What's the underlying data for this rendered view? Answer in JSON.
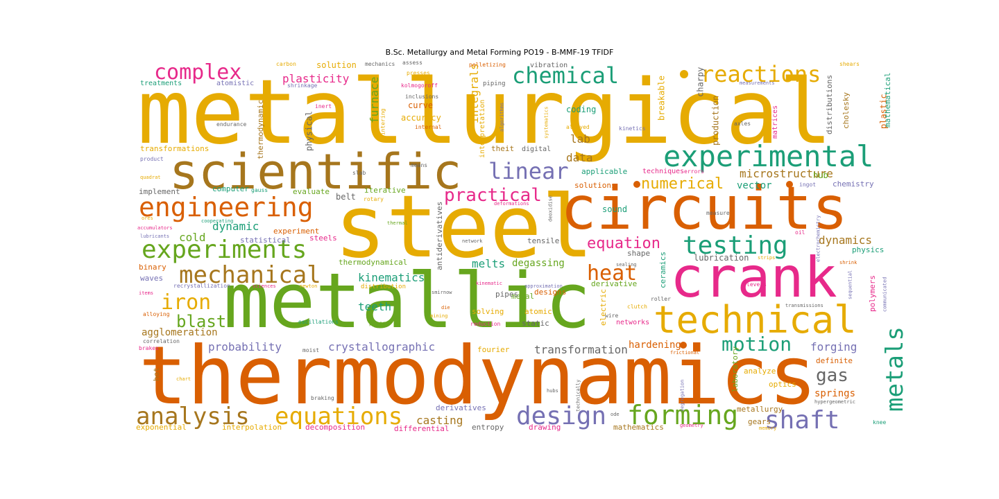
{
  "title": "B.Sc. Metallurgy and Metal Forming  PO19 - B-MMF-19 TFIDF",
  "palette": {
    "yellow": "#e6ab02",
    "orange": "#d95f02",
    "green": "#66a61e",
    "teal": "#1b9e77",
    "purple": "#7570b3",
    "magenta": "#e7298a",
    "brown": "#a6761d",
    "gray": "#666666"
  },
  "words": [
    {
      "text": "metallurgical",
      "color": "yellow"
    },
    {
      "text": "thermodynamics",
      "color": "orange"
    },
    {
      "text": "steel",
      "color": "yellow"
    },
    {
      "text": "metallic",
      "color": "green"
    },
    {
      "text": "circuits",
      "color": "orange"
    },
    {
      "text": "scientific",
      "color": "brown"
    },
    {
      "text": "crank",
      "color": "magenta"
    },
    {
      "text": "technical",
      "color": "yellow"
    },
    {
      "text": "experimental",
      "color": "teal"
    },
    {
      "text": "engineering",
      "color": "orange"
    },
    {
      "text": "experiments",
      "color": "green"
    },
    {
      "text": "testing",
      "color": "teal"
    },
    {
      "text": "mechanical",
      "color": "brown"
    },
    {
      "text": "analysis",
      "color": "brown"
    },
    {
      "text": "equations",
      "color": "yellow"
    },
    {
      "text": "forming",
      "color": "green"
    },
    {
      "text": "design",
      "color": "purple"
    },
    {
      "text": "shaft",
      "color": "purple"
    },
    {
      "text": "metals",
      "color": "teal"
    },
    {
      "text": "chemical",
      "color": "teal"
    },
    {
      "text": "reactions",
      "color": "yellow"
    },
    {
      "text": "complex",
      "color": "magenta"
    },
    {
      "text": "linear",
      "color": "purple"
    },
    {
      "text": "heat",
      "color": "orange"
    },
    {
      "text": "motion",
      "color": "teal"
    },
    {
      "text": "iron",
      "color": "yellow"
    },
    {
      "text": "blast",
      "color": "green"
    },
    {
      "text": "practical",
      "color": "magenta"
    },
    {
      "text": "equation",
      "color": "magenta"
    },
    {
      "text": "numerical",
      "color": "yellow"
    },
    {
      "text": "gas",
      "color": "gray"
    },
    {
      "text": "plasticity",
      "color": "magenta"
    },
    {
      "text": "furnace",
      "color": "green"
    },
    {
      "text": "integrals",
      "color": "yellow"
    },
    {
      "text": "microstructure",
      "color": "brown"
    },
    {
      "text": "agglomeration",
      "color": "brown"
    },
    {
      "text": "probability",
      "color": "purple"
    },
    {
      "text": "crystallographic",
      "color": "purple"
    },
    {
      "text": "transformation",
      "color": "gray"
    },
    {
      "text": "forging",
      "color": "purple"
    },
    {
      "text": "hardening",
      "color": "orange"
    },
    {
      "text": "casting",
      "color": "brown"
    },
    {
      "text": "kinematics",
      "color": "teal"
    },
    {
      "text": "degassing",
      "color": "green"
    },
    {
      "text": "melts",
      "color": "teal"
    },
    {
      "text": "teeth",
      "color": "teal"
    },
    {
      "text": "dynamics",
      "color": "brown"
    },
    {
      "text": "springs",
      "color": "orange"
    },
    {
      "text": "cold",
      "color": "green"
    },
    {
      "text": "dynamic",
      "color": "teal"
    },
    {
      "text": "vector",
      "color": "teal"
    },
    {
      "text": "lab",
      "color": "brown"
    },
    {
      "text": "data",
      "color": "brown"
    },
    {
      "text": "solution",
      "color": "yellow"
    },
    {
      "text": "curve",
      "color": "orange"
    },
    {
      "text": "accuracy",
      "color": "yellow"
    },
    {
      "text": "coding",
      "color": "teal"
    },
    {
      "text": "breakable",
      "color": "yellow"
    },
    {
      "text": "charpy",
      "color": "gray"
    },
    {
      "text": "production",
      "color": "brown"
    },
    {
      "text": "plastic",
      "color": "orange"
    },
    {
      "text": "mathematical",
      "color": "teal"
    },
    {
      "text": "cholesky",
      "color": "brown"
    },
    {
      "text": "distributions",
      "color": "gray"
    },
    {
      "text": "thermodynamic",
      "color": "brown"
    },
    {
      "text": "physical",
      "color": "gray"
    },
    {
      "text": "transformations",
      "color": "yellow"
    },
    {
      "text": "implement",
      "color": "gray"
    },
    {
      "text": "computer",
      "color": "teal"
    },
    {
      "text": "evaluate",
      "color": "green"
    },
    {
      "text": "belt",
      "color": "gray"
    },
    {
      "text": "iterative",
      "color": "green"
    },
    {
      "text": "antiderivatives",
      "color": "gray"
    },
    {
      "text": "applicable",
      "color": "teal"
    },
    {
      "text": "techniques",
      "color": "magenta"
    },
    {
      "text": "solutions",
      "color": "orange"
    },
    {
      "text": "sound",
      "color": "teal"
    },
    {
      "text": "hub",
      "color": "green"
    },
    {
      "text": "chemistry",
      "color": "purple"
    },
    {
      "text": "physics",
      "color": "teal"
    },
    {
      "text": "lubrication",
      "color": "gray"
    },
    {
      "text": "shape",
      "color": "gray"
    },
    {
      "text": "tensile",
      "color": "gray"
    },
    {
      "text": "experiment",
      "color": "orange"
    },
    {
      "text": "steels",
      "color": "magenta"
    },
    {
      "text": "statistical",
      "color": "purple"
    },
    {
      "text": "binary",
      "color": "orange"
    },
    {
      "text": "waves",
      "color": "purple"
    },
    {
      "text": "thermodynamical",
      "color": "green"
    },
    {
      "text": "distribution",
      "color": "yellow"
    },
    {
      "text": "derivative",
      "color": "green"
    },
    {
      "text": "ceramics",
      "color": "teal"
    },
    {
      "text": "electric",
      "color": "yellow"
    },
    {
      "text": "laboratory",
      "color": "green"
    },
    {
      "text": "polymers",
      "color": "magenta"
    },
    {
      "text": "designs",
      "color": "orange"
    },
    {
      "text": "metal",
      "color": "green"
    },
    {
      "text": "atomic",
      "color": "yellow"
    },
    {
      "text": "static",
      "color": "gray"
    },
    {
      "text": "solving",
      "color": "yellow"
    },
    {
      "text": "pipes",
      "color": "gray"
    },
    {
      "text": "networks",
      "color": "magenta"
    },
    {
      "text": "fourier",
      "color": "yellow"
    },
    {
      "text": "definite",
      "color": "orange"
    },
    {
      "text": "analyze",
      "color": "yellow"
    },
    {
      "text": "optics",
      "color": "yellow"
    },
    {
      "text": "hot",
      "color": "brown"
    },
    {
      "text": "derivatives",
      "color": "purple"
    },
    {
      "text": "metallurgy",
      "color": "brown"
    },
    {
      "text": "gears",
      "color": "brown"
    },
    {
      "text": "exponential",
      "color": "yellow"
    },
    {
      "text": "interpolation",
      "color": "yellow"
    },
    {
      "text": "decomposition",
      "color": "magenta"
    },
    {
      "text": "differential",
      "color": "magenta"
    },
    {
      "text": "entropy",
      "color": "gray"
    },
    {
      "text": "drawing",
      "color": "magenta"
    },
    {
      "text": "mathematics",
      "color": "brown"
    },
    {
      "text": "treatments",
      "color": "teal"
    },
    {
      "text": "atomistic",
      "color": "purple"
    },
    {
      "text": "carbon",
      "color": "yellow"
    },
    {
      "text": "mechanics",
      "color": "gray"
    },
    {
      "text": "assess",
      "color": "gray"
    },
    {
      "text": "presses",
      "color": "yellow"
    },
    {
      "text": "pelletizing",
      "color": "orange"
    },
    {
      "text": "vibration",
      "color": "gray"
    },
    {
      "text": "piping",
      "color": "gray"
    },
    {
      "text": "shrinkage",
      "color": "purple"
    },
    {
      "text": "kolmogoroff",
      "color": "magenta"
    },
    {
      "text": "inclusions",
      "color": "gray"
    },
    {
      "text": "inert",
      "color": "magenta"
    },
    {
      "text": "sintering",
      "color": "yellow"
    },
    {
      "text": "internal",
      "color": "orange"
    },
    {
      "text": "algorithms",
      "color": "purple"
    },
    {
      "text": "interpretation",
      "color": "yellow"
    },
    {
      "text": "systematics",
      "color": "yellow"
    },
    {
      "text": "digital",
      "color": "gray"
    },
    {
      "text": "theit",
      "color": "brown"
    },
    {
      "text": "alloyed",
      "color": "yellow"
    },
    {
      "text": "kinetics",
      "color": "purple"
    },
    {
      "text": "axles",
      "color": "gray"
    },
    {
      "text": "matrices",
      "color": "magenta"
    },
    {
      "text": "shears",
      "color": "yellow"
    },
    {
      "text": "measurements",
      "color": "purple"
    },
    {
      "text": "endurance",
      "color": "gray"
    },
    {
      "text": "product",
      "color": "purple"
    },
    {
      "text": "quadrat",
      "color": "yellow"
    },
    {
      "text": "slab",
      "color": "gray"
    },
    {
      "text": "means",
      "color": "gray"
    },
    {
      "text": "gauss",
      "color": "teal"
    },
    {
      "text": "rotary",
      "color": "yellow"
    },
    {
      "text": "deformations",
      "color": "magenta"
    },
    {
      "text": "deoxidise",
      "color": "gray"
    },
    {
      "text": "errors",
      "color": "magenta"
    },
    {
      "text": "ingot",
      "color": "purple"
    },
    {
      "text": "ores",
      "color": "yellow"
    },
    {
      "text": "accumulators",
      "color": "magenta"
    },
    {
      "text": "lubricants",
      "color": "purple"
    },
    {
      "text": "cooperating",
      "color": "teal"
    },
    {
      "text": "thermal",
      "color": "green"
    },
    {
      "text": "network",
      "color": "gray"
    },
    {
      "text": "measure",
      "color": "gray"
    },
    {
      "text": "oil",
      "color": "magenta"
    },
    {
      "text": "electrochemistry",
      "color": "purple"
    },
    {
      "text": "sealing",
      "color": "gray"
    },
    {
      "text": "strips",
      "color": "yellow"
    },
    {
      "text": "shrink",
      "color": "orange"
    },
    {
      "text": "recrystallization",
      "color": "purple"
    },
    {
      "text": "sciences",
      "color": "magenta"
    },
    {
      "text": "newton",
      "color": "yellow"
    },
    {
      "text": "kinematic",
      "color": "magenta"
    },
    {
      "text": "approximation",
      "color": "purple"
    },
    {
      "text": "roller",
      "color": "gray"
    },
    {
      "text": "levers",
      "color": "magenta"
    },
    {
      "text": "sequential",
      "color": "purple"
    },
    {
      "text": "communicated",
      "color": "purple"
    },
    {
      "text": "items",
      "color": "magenta"
    },
    {
      "text": "smirnow",
      "color": "gray"
    },
    {
      "text": "transmissions",
      "color": "gray"
    },
    {
      "text": "alloying",
      "color": "orange"
    },
    {
      "text": "die",
      "color": "orange"
    },
    {
      "text": "mining",
      "color": "yellow"
    },
    {
      "text": "clutch",
      "color": "yellow"
    },
    {
      "text": "wire",
      "color": "gray"
    },
    {
      "text": "oscillations",
      "color": "teal"
    },
    {
      "text": "press",
      "color": "green"
    },
    {
      "text": "reduction",
      "color": "magenta"
    },
    {
      "text": "correlation",
      "color": "gray"
    },
    {
      "text": "brakes",
      "color": "magenta"
    },
    {
      "text": "moist",
      "color": "gray"
    },
    {
      "text": "frictional",
      "color": "orange"
    },
    {
      "text": "chart",
      "color": "yellow"
    },
    {
      "text": "segregation",
      "color": "purple"
    },
    {
      "text": "braking",
      "color": "gray"
    },
    {
      "text": "hubs",
      "color": "gray"
    },
    {
      "text": "technically",
      "color": "gray"
    },
    {
      "text": "hypergeometric",
      "color": "gray"
    },
    {
      "text": "ode",
      "color": "gray"
    },
    {
      "text": "geometry",
      "color": "magenta"
    },
    {
      "text": "memory",
      "color": "yellow"
    },
    {
      "text": "knee",
      "color": "teal"
    }
  ]
}
